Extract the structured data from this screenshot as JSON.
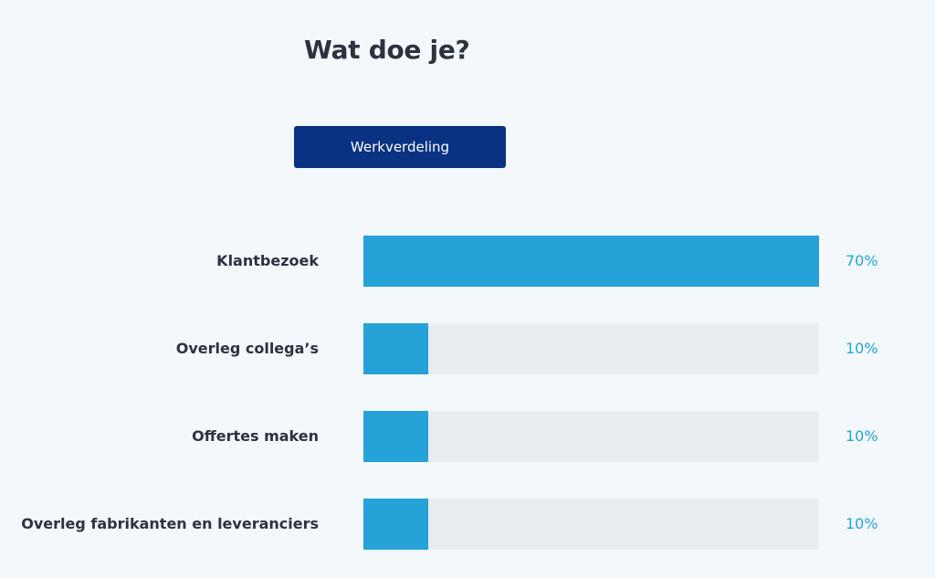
{
  "page_title": "Wat doe je?",
  "tab": {
    "label": "Werkverdeling"
  },
  "colors": {
    "bar_fill": "#25a3d8",
    "bar_track": "#e9ecf1",
    "button": "#0a3282",
    "title": "#2b3340"
  },
  "chart_data": {
    "type": "bar",
    "orientation": "horizontal",
    "categories": [
      "Klantbezoek",
      "Overleg collega’s",
      "Offertes maken",
      "Overleg fabrikanten en leveranciers"
    ],
    "values": [
      70,
      10,
      10,
      10
    ],
    "value_labels": [
      "70%",
      "10%",
      "10%",
      "10%"
    ],
    "xlim": [
      0,
      70
    ],
    "grid": false,
    "legend": false
  }
}
